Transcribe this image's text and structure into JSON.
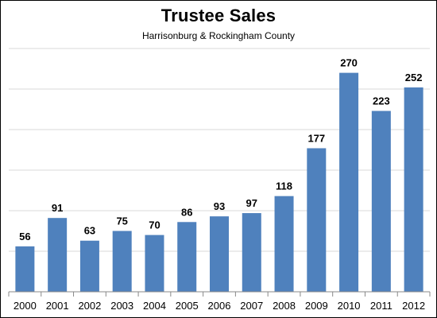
{
  "chart_data": {
    "type": "bar",
    "title": "Trustee Sales",
    "subtitle": "Harrisonburg & Rockingham County",
    "categories": [
      "2000",
      "2001",
      "2002",
      "2003",
      "2004",
      "2005",
      "2006",
      "2007",
      "2008",
      "2009",
      "2010",
      "2011",
      "2012"
    ],
    "values": [
      56,
      91,
      63,
      75,
      70,
      86,
      93,
      97,
      118,
      177,
      270,
      223,
      252
    ],
    "xlabel": "",
    "ylabel": "",
    "ylim": [
      0,
      300
    ],
    "y_gridline_step": 50,
    "y_tick_labels_shown": false,
    "grid": true,
    "legend": "none",
    "data_labels": true,
    "bar_color": "#4F81BD",
    "grid_color": "#D9D9D9"
  }
}
